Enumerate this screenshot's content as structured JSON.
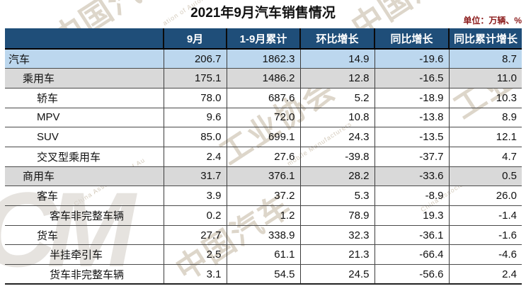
{
  "title": "2021年9月汽车销售情况",
  "unit_label": "单位：万辆、%",
  "colors": {
    "header_bg": "#1F4E79",
    "header_text": "#FFFFFF",
    "row_highlight_blue": "#BCD7EE",
    "row_highlight_gray": "#D9D9D9",
    "unit_text": "#8B1A1A"
  },
  "watermark": {
    "cn_full": "中国汽车工业协会",
    "en_full": "China Association of Automobile Manufacturers",
    "fragments": {
      "f1": "中国汽车",
      "f2": "ation of Automob",
      "f3": "中国汽",
      "f4": "工业协会",
      "f5": "mobile Manufacturers",
      "f6": "China Association of Au",
      "f7": "China Association",
      "f8": "中国汽车",
      "f9": "工业",
      "logo": "CM"
    }
  },
  "table": {
    "category_header": "",
    "columns": [
      "9月",
      "1-9月累计",
      "环比增长",
      "同比增长",
      "同比累计增长"
    ],
    "rows": [
      {
        "label": "汽车",
        "indent": 0,
        "bg": "blue",
        "values": [
          "206.7",
          "1862.3",
          "14.9",
          "-19.6",
          "8.7"
        ]
      },
      {
        "label": "乘用车",
        "indent": 1,
        "bg": "gray",
        "values": [
          "175.1",
          "1486.2",
          "12.8",
          "-16.5",
          "11.0"
        ]
      },
      {
        "label": "轿车",
        "indent": 2,
        "bg": "white",
        "values": [
          "78.0",
          "687.6",
          "5.2",
          "-18.9",
          "10.3"
        ]
      },
      {
        "label": "MPV",
        "indent": 2,
        "bg": "white",
        "values": [
          "9.6",
          "72.0",
          "10.8",
          "-13.8",
          "8.9"
        ]
      },
      {
        "label": "SUV",
        "indent": 2,
        "bg": "white",
        "values": [
          "85.0",
          "699.1",
          "24.3",
          "-13.5",
          "12.1"
        ]
      },
      {
        "label": "交叉型乘用车",
        "indent": 2,
        "bg": "white",
        "values": [
          "2.4",
          "27.6",
          "-39.8",
          "-37.7",
          "4.7"
        ]
      },
      {
        "label": "商用车",
        "indent": 1,
        "bg": "gray",
        "values": [
          "31.7",
          "376.1",
          "28.2",
          "-33.6",
          "0.5"
        ]
      },
      {
        "label": "客车",
        "indent": 2,
        "bg": "white",
        "values": [
          "3.9",
          "37.2",
          "5.3",
          "-8.9",
          "26.0"
        ]
      },
      {
        "label": "客车非完整车辆",
        "indent": 3,
        "bg": "white",
        "values": [
          "0.2",
          "1.2",
          "78.9",
          "19.3",
          "-1.4"
        ]
      },
      {
        "label": "货车",
        "indent": 2,
        "bg": "white",
        "values": [
          "27.7",
          "338.9",
          "32.3",
          "-36.1",
          "-1.6"
        ]
      },
      {
        "label": "半挂牵引车",
        "indent": 3,
        "bg": "white",
        "values": [
          "2.5",
          "61.1",
          "21.3",
          "-66.4",
          "-4.6"
        ]
      },
      {
        "label": "货车非完整车辆",
        "indent": 3,
        "bg": "white",
        "values": [
          "3.1",
          "54.5",
          "24.5",
          "-56.6",
          "2.4"
        ]
      }
    ]
  },
  "chart_data": {
    "type": "table",
    "title": "2021年9月汽车销售情况",
    "unit": "万辆、%",
    "columns": [
      "9月",
      "1-9月累计",
      "环比增长",
      "同比增长",
      "同比累计增长"
    ],
    "rows": [
      {
        "category": "汽车",
        "values": [
          206.7,
          1862.3,
          14.9,
          -19.6,
          8.7
        ]
      },
      {
        "category": "乘用车",
        "values": [
          175.1,
          1486.2,
          12.8,
          -16.5,
          11.0
        ]
      },
      {
        "category": "轿车",
        "values": [
          78.0,
          687.6,
          5.2,
          -18.9,
          10.3
        ]
      },
      {
        "category": "MPV",
        "values": [
          9.6,
          72.0,
          10.8,
          -13.8,
          8.9
        ]
      },
      {
        "category": "SUV",
        "values": [
          85.0,
          699.1,
          24.3,
          -13.5,
          12.1
        ]
      },
      {
        "category": "交叉型乘用车",
        "values": [
          2.4,
          27.6,
          -39.8,
          -37.7,
          4.7
        ]
      },
      {
        "category": "商用车",
        "values": [
          31.7,
          376.1,
          28.2,
          -33.6,
          0.5
        ]
      },
      {
        "category": "客车",
        "values": [
          3.9,
          37.2,
          5.3,
          -8.9,
          26.0
        ]
      },
      {
        "category": "客车非完整车辆",
        "values": [
          0.2,
          1.2,
          78.9,
          19.3,
          -1.4
        ]
      },
      {
        "category": "货车",
        "values": [
          27.7,
          338.9,
          32.3,
          -36.1,
          -1.6
        ]
      },
      {
        "category": "半挂牵引车",
        "values": [
          2.5,
          61.1,
          21.3,
          -66.4,
          -4.6
        ]
      },
      {
        "category": "货车非完整车辆",
        "values": [
          3.1,
          54.5,
          24.5,
          -56.6,
          2.4
        ]
      }
    ]
  }
}
